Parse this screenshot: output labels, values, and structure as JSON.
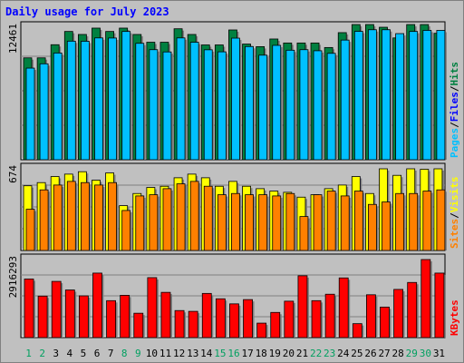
{
  "chart_data": {
    "type": "bar",
    "title": "Daily usage for July 2023",
    "categories": [
      "1",
      "2",
      "3",
      "4",
      "5",
      "6",
      "7",
      "8",
      "9",
      "10",
      "11",
      "12",
      "13",
      "14",
      "15",
      "16",
      "17",
      "18",
      "19",
      "20",
      "21",
      "22",
      "23",
      "24",
      "25",
      "26",
      "27",
      "28",
      "29",
      "30",
      "31"
    ],
    "weekend_days": [
      "1",
      "2",
      "8",
      "9",
      "15",
      "16",
      "22",
      "23",
      "29",
      "30"
    ],
    "panels": [
      {
        "id": "hits",
        "max_label": "12461",
        "ymax": 12461,
        "legend": [
          "Pages",
          "Files",
          "Hits"
        ],
        "series": [
          {
            "name": "Hits",
            "color": "#008040",
            "values": [
              9450,
              9450,
              10670,
              11900,
              11620,
              12210,
              11900,
              12210,
              11620,
              10900,
              10900,
              12150,
              11620,
              10650,
              10650,
              12040,
              10730,
              10490,
              11200,
              10830,
              10830,
              10830,
              10410,
              11790,
              12540,
              12540,
              12290,
              11300,
              12540,
              12540,
              11730
            ]
          },
          {
            "name": "Files",
            "color": "#00c0ff",
            "values": [
              8500,
              8900,
              9900,
              11000,
              10990,
              11300,
              11290,
              11900,
              10800,
              10210,
              10000,
              11300,
              10900,
              10200,
              10010,
              11280,
              10500,
              9700,
              10610,
              10160,
              10210,
              10110,
              9870,
              11100,
              11910,
              12060,
              12060,
              11700,
              11900,
              12000,
              12000
            ]
          },
          {
            "name": "Pages",
            "color": "#00c0ff",
            "values": []
          }
        ]
      },
      {
        "id": "visits",
        "max_label": "674",
        "ymax": 674,
        "legend": [
          "Sites",
          "Visits"
        ],
        "series": [
          {
            "name": "Visits",
            "color": "#ffff00",
            "values": [
              534,
              560,
              610,
              630,
              650,
              580,
              640,
              370,
              470,
              520,
              530,
              600,
              630,
              600,
              530,
              570,
              530,
              510,
              490,
              480,
              440,
              460,
              510,
              540,
              610,
              470,
              674,
              620,
              674,
              670,
              674
            ]
          },
          {
            "name": "Sites",
            "color": "#ff8000",
            "values": [
              340,
              500,
              540,
              570,
              560,
              540,
              560,
              330,
              450,
              460,
              510,
              550,
              570,
              530,
              460,
              470,
              460,
              460,
              450,
              470,
              280,
              460,
              490,
              450,
              490,
              380,
              400,
              470,
              470,
              490,
              500
            ]
          }
        ]
      },
      {
        "id": "kbytes",
        "max_label": "2916293",
        "ymax": 2916293,
        "legend": [
          "KBytes"
        ],
        "series": [
          {
            "name": "KBytes",
            "color": "#ff0000",
            "values": [
              2190000,
              1550000,
              2100000,
              1780000,
              1560000,
              2410000,
              1380000,
              1580000,
              910000,
              2240000,
              1690000,
              1010000,
              980000,
              1650000,
              1450000,
              1260000,
              1420000,
              540000,
              940000,
              1360000,
              2310000,
              1380000,
              1620000,
              2230000,
              520000,
              1600000,
              1140000,
              1800000,
              2060000,
              2916293,
              2410000
            ]
          }
        ]
      }
    ]
  },
  "colors": {
    "background": "#c0c0c0",
    "plot_bg": "#c0c0c0",
    "title": "#0000ff",
    "day_label": "#008040",
    "weekend_label": "#00a060"
  }
}
